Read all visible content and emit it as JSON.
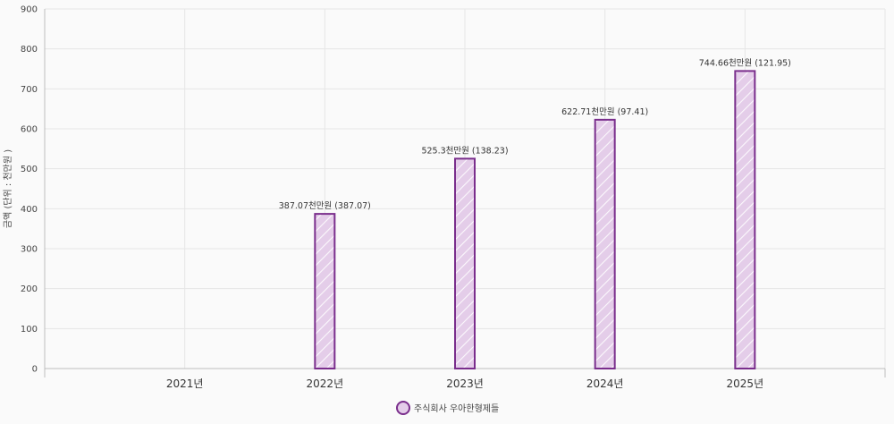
{
  "chart_data": {
    "type": "bar",
    "title": "",
    "xlabel": "",
    "ylabel": "금액 (단위 : 천만원 )",
    "ylim": [
      0,
      900
    ],
    "yticks": [
      0,
      100,
      200,
      300,
      400,
      500,
      600,
      700,
      800,
      900
    ],
    "categories": [
      "2021년",
      "2022년",
      "2023년",
      "2024년",
      "2025년"
    ],
    "series": [
      {
        "name": "주식회사 우아한형제들",
        "values": [
          null,
          387.07,
          525.3,
          622.71,
          744.66
        ],
        "labels": [
          "",
          "387.07천만원 (387.07)",
          "525.3천만원 (138.23)",
          "622.71천만원 (97.41)",
          "744.66천만원 (121.95)"
        ],
        "fill_color": "#e4cde9",
        "stroke_color": "#7a2e8c",
        "pattern": "diagonal-hatch"
      }
    ],
    "grid": true,
    "legend_position": "bottom"
  }
}
